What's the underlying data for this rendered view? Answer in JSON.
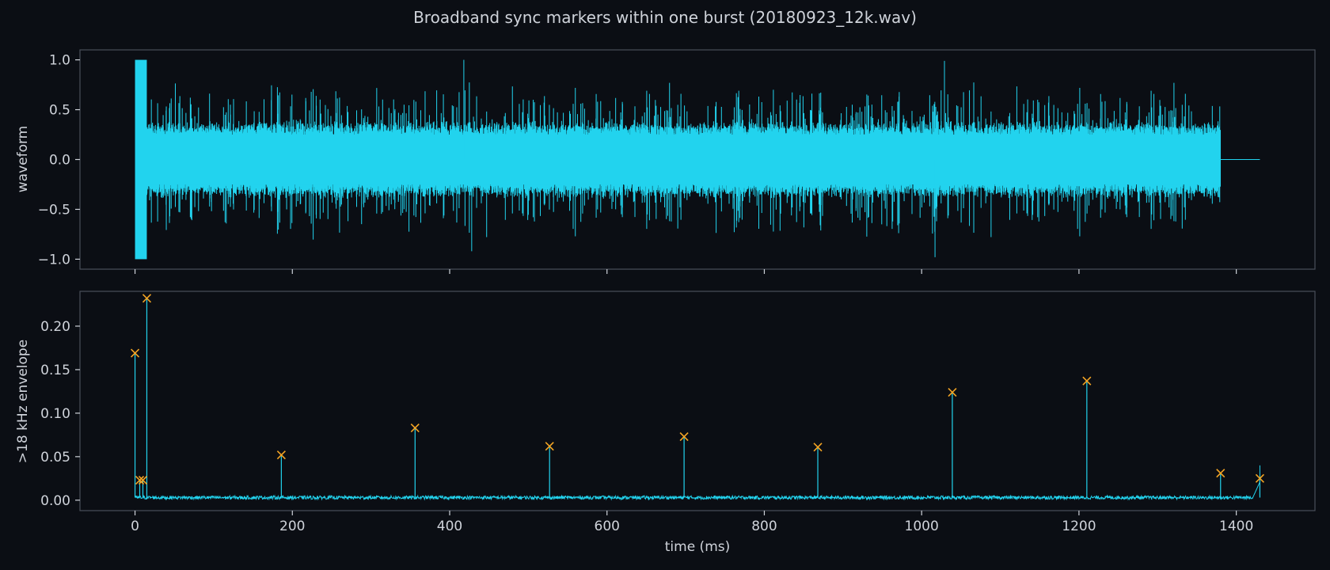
{
  "colors": {
    "background": "#0b0e14",
    "axes_bg": "#0b0e14",
    "spine": "#4a4f59",
    "text": "#cfd3da",
    "signal": "#22d3ee",
    "marker": "#f5a524"
  },
  "figure": {
    "title": "Broadband sync markers within one burst (20180923_12k.wav)"
  },
  "chart_data": [
    {
      "type": "line",
      "panel": "top",
      "ylabel": "waveform",
      "xlabel": "",
      "xlim": [
        -70,
        1500
      ],
      "ylim": [
        -1.1,
        1.1
      ],
      "yticks": [
        1.0,
        0.5,
        0.0,
        -0.5,
        -1.0
      ],
      "ytick_labels": [
        "1.0",
        "0.5",
        "0.0",
        "−0.5",
        "−1.0"
      ],
      "xticks": [
        0,
        200,
        400,
        600,
        800,
        1000,
        1200,
        1400
      ],
      "show_xtick_labels": false,
      "grid": false,
      "description_points": {
        "initial_block": {
          "x": [
            0,
            15
          ],
          "amplitude": 1.0
        },
        "noise_region": {
          "x": [
            15,
            1380
          ],
          "core_amplitude": 0.34,
          "peak_amplitude": 0.8
        },
        "spikes": [
          {
            "x": 418,
            "y": 1.0
          },
          {
            "x": 428,
            "y": -0.92
          },
          {
            "x": 1017,
            "y": -0.98
          },
          {
            "x": 1029,
            "y": 0.99
          }
        ],
        "silence": {
          "x": [
            1380,
            1430
          ],
          "y": 0.0
        }
      }
    },
    {
      "type": "line",
      "panel": "bottom",
      "ylabel": ">18 kHz envelope",
      "xlabel": "time (ms)",
      "xlim": [
        -70,
        1500
      ],
      "ylim": [
        -0.012,
        0.24
      ],
      "yticks": [
        0.0,
        0.05,
        0.1,
        0.15,
        0.2
      ],
      "ytick_labels": [
        "0.00",
        "0.05",
        "0.10",
        "0.15",
        "0.20"
      ],
      "xticks": [
        0,
        200,
        400,
        600,
        800,
        1000,
        1200,
        1400
      ],
      "xtick_labels": [
        "0",
        "200",
        "400",
        "600",
        "800",
        "1000",
        "1200",
        "1400"
      ],
      "grid": false,
      "baseline": 0.003,
      "peaks": {
        "x": [
          0,
          6,
          10,
          15,
          186,
          356,
          527,
          698,
          868,
          1039,
          1210,
          1380,
          1430
        ],
        "y": [
          0.169,
          0.023,
          0.023,
          0.232,
          0.052,
          0.083,
          0.062,
          0.073,
          0.061,
          0.124,
          0.137,
          0.031,
          0.025
        ]
      }
    }
  ]
}
